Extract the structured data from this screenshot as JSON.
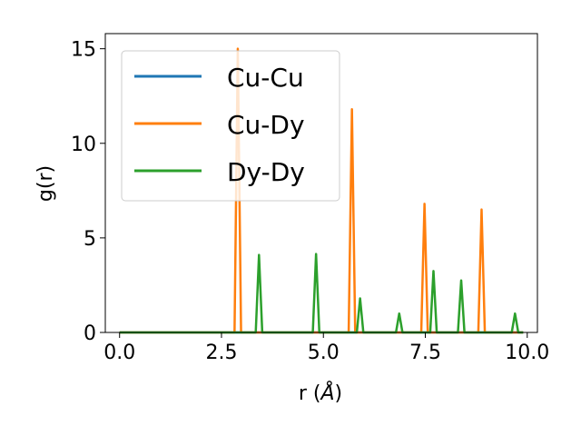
{
  "chart_data": {
    "type": "line",
    "xlabel_main": "r (",
    "xlabel_unit": "Å",
    "xlabel_close": ")",
    "ylabel": "g(r)",
    "xlim": [
      -0.35,
      10.25
    ],
    "ylim": [
      0,
      15.8
    ],
    "xticks": [
      0.0,
      2.5,
      5.0,
      7.5,
      10.0
    ],
    "xtick_labels": [
      "0.0",
      "2.5",
      "5.0",
      "7.5",
      "10.0"
    ],
    "yticks": [
      0,
      5,
      10,
      15
    ],
    "ytick_labels": [
      "0",
      "5",
      "10",
      "15"
    ],
    "grid": false,
    "legend_position": "upper-left",
    "series": [
      {
        "name": "Cu-Cu",
        "color": "#1f77b4",
        "x": [
          0.0,
          9.9
        ],
        "y": [
          0,
          0
        ]
      },
      {
        "name": "Cu-Dy",
        "color": "#ff7f0e",
        "x": [
          0.0,
          2.82,
          2.9,
          2.98,
          3.06,
          5.62,
          5.7,
          5.78,
          5.86,
          7.4,
          7.48,
          7.56,
          7.64,
          8.8,
          8.88,
          8.96,
          9.04,
          9.9
        ],
        "y": [
          0,
          0,
          15.0,
          0,
          0,
          0,
          11.8,
          0,
          0,
          0,
          6.8,
          0,
          0,
          0,
          6.5,
          0,
          0,
          0
        ]
      },
      {
        "name": "Dy-Dy",
        "color": "#2ca02c",
        "x": [
          0.0,
          3.34,
          3.42,
          3.5,
          3.58,
          4.74,
          4.82,
          4.9,
          4.98,
          5.82,
          5.9,
          5.98,
          6.06,
          6.78,
          6.86,
          6.94,
          7.02,
          7.62,
          7.7,
          7.78,
          7.86,
          8.3,
          8.38,
          8.46,
          8.54,
          9.62,
          9.7,
          9.78,
          9.86,
          9.9
        ],
        "y": [
          0,
          0,
          4.1,
          0,
          0,
          0,
          4.15,
          0,
          0,
          0,
          1.8,
          0,
          0,
          0,
          1.0,
          0,
          0,
          0,
          3.25,
          0,
          0,
          0,
          2.75,
          0,
          0,
          0,
          1.0,
          0,
          0,
          0
        ]
      }
    ]
  }
}
